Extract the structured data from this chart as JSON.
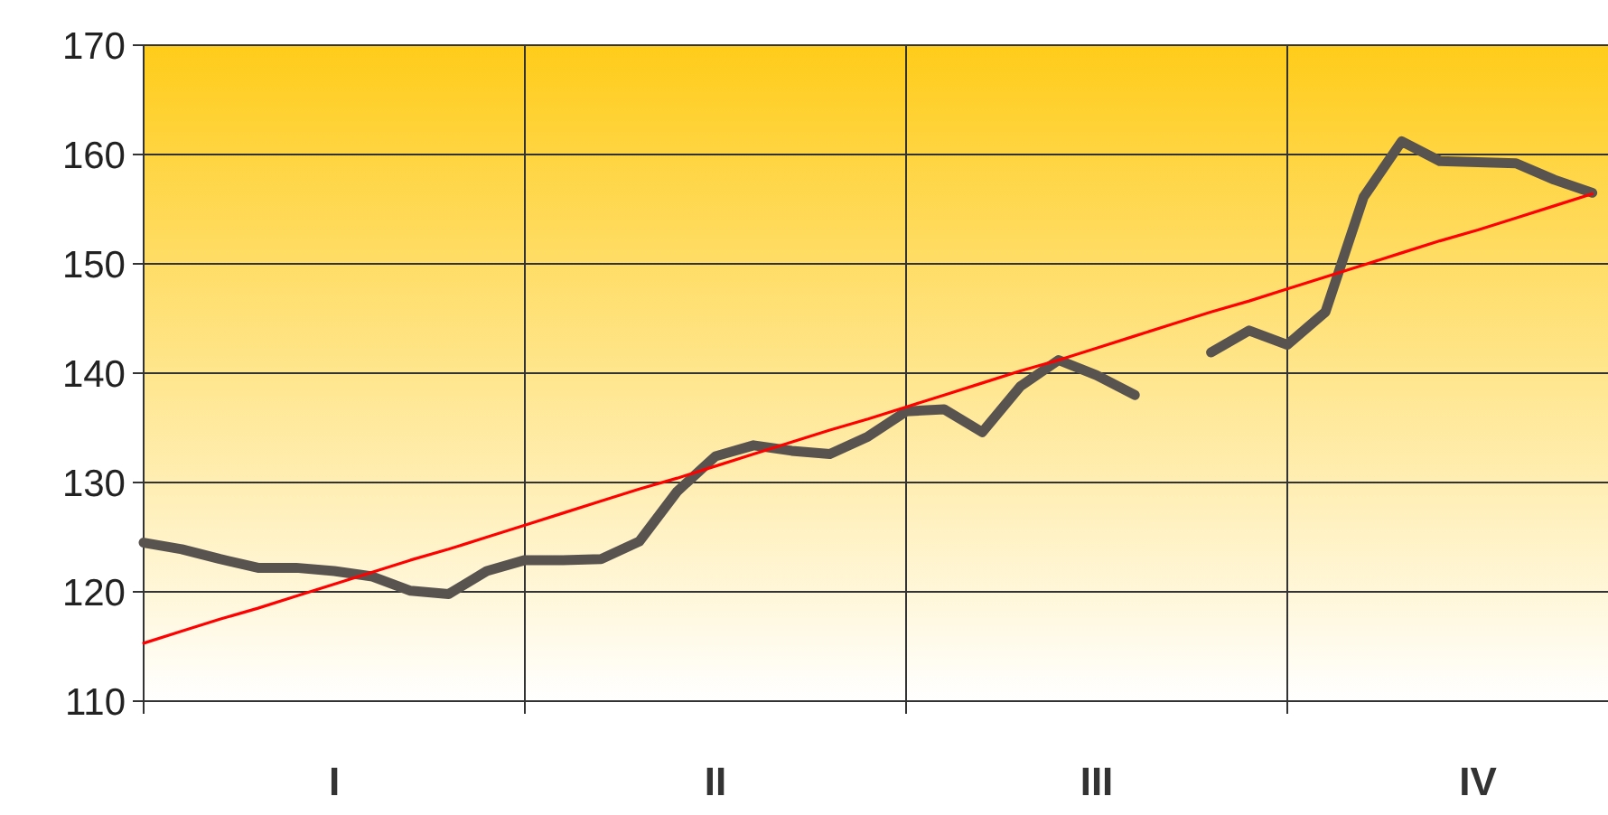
{
  "chart_data": {
    "type": "line",
    "ylim": [
      110,
      170
    ],
    "yticks": [
      110,
      120,
      130,
      140,
      150,
      160,
      170
    ],
    "categories": [
      null,
      null,
      null,
      null,
      null,
      "I",
      null,
      null,
      null,
      null,
      null,
      null,
      null,
      null,
      null,
      "II",
      null,
      null,
      null,
      null,
      null,
      null,
      null,
      null,
      null,
      "III",
      null,
      null,
      null,
      null,
      null,
      null,
      null,
      null,
      null,
      "IV",
      null,
      null,
      null
    ],
    "grid": true,
    "marker": "none",
    "line_style": "solid",
    "series": [
      {
        "color": "#595350",
        "values": [
          124.5,
          123.9,
          123,
          122.2,
          122.2,
          121.9,
          121.4,
          120.1,
          119.8,
          121.9,
          122.9,
          122.9,
          123,
          124.6,
          129.2,
          132.4,
          133.4,
          132.9,
          132.6,
          134.2,
          136.5,
          136.7,
          134.6,
          138.8,
          141.2,
          139.8,
          138,
          null,
          141.9,
          143.9,
          142.6,
          145.6,
          156.1,
          161.2,
          159.4,
          159.3,
          159.2,
          157.7,
          156.5
        ]
      },
      {
        "color": "#ff0000",
        "values": [
          115.3,
          116.4,
          117.5,
          118.5,
          119.6,
          120.7,
          121.8,
          122.9,
          123.9,
          125,
          126.1,
          127.2,
          128.3,
          129.4,
          130.4,
          131.5,
          132.6,
          133.7,
          134.8,
          135.8,
          136.9,
          138,
          139.1,
          140.2,
          141.2,
          142.3,
          143.4,
          144.5,
          145.6,
          146.6,
          147.7,
          148.8,
          149.9,
          151,
          152.1,
          153.1,
          154.2,
          155.3,
          156.4
        ]
      }
    ]
  }
}
